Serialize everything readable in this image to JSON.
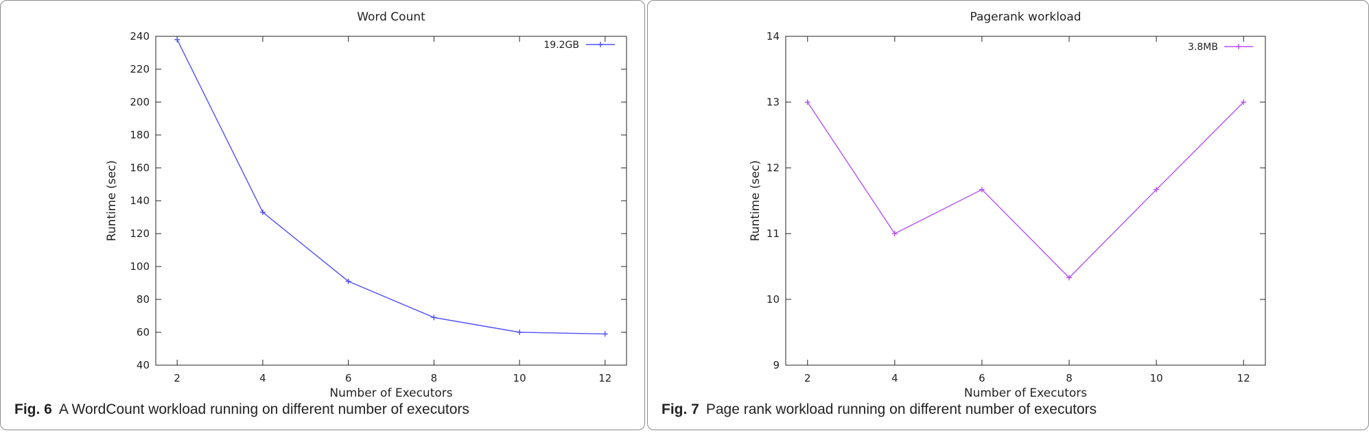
{
  "chart_data": [
    {
      "type": "line",
      "title": "Word Count",
      "xlabel": "Number of Executors",
      "ylabel": "Runtime (sec)",
      "x": [
        2,
        4,
        6,
        8,
        10,
        12
      ],
      "xticks": [
        2,
        4,
        6,
        8,
        10,
        12
      ],
      "yticks": [
        40,
        60,
        80,
        100,
        120,
        140,
        160,
        180,
        200,
        220,
        240
      ],
      "xlim": [
        1.5,
        12.5
      ],
      "ylim": [
        40,
        240
      ],
      "series": [
        {
          "name": "19.2GB",
          "color": "#4f4ff5",
          "values": [
            238,
            133,
            91,
            69,
            60,
            59
          ]
        }
      ],
      "legend": "top-right",
      "grid": false,
      "caption_label": "Fig. 6",
      "caption_text": "A WordCount workload running on different number of executors"
    },
    {
      "type": "line",
      "title": "Pagerank workload",
      "xlabel": "Number of Executors",
      "ylabel": "Runtime (sec)",
      "x": [
        2,
        4,
        6,
        8,
        10,
        12
      ],
      "xticks": [
        2,
        4,
        6,
        8,
        10,
        12
      ],
      "yticks": [
        9,
        10,
        11,
        12,
        13,
        14
      ],
      "xlim": [
        1.5,
        12.5
      ],
      "ylim": [
        9,
        14
      ],
      "series": [
        {
          "name": "3.8MB",
          "color": "#b44ff0",
          "values": [
            13,
            11,
            11.67,
            10.33,
            11.67,
            13
          ]
        }
      ],
      "legend": "top-right",
      "grid": false,
      "caption_label": "Fig. 7",
      "caption_text": "Page rank workload running on different number of executors"
    }
  ]
}
